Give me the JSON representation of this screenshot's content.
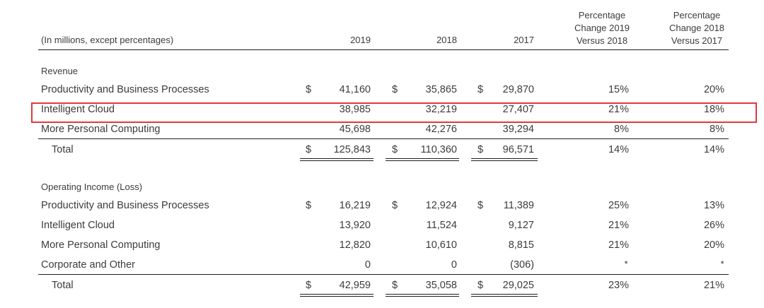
{
  "header": {
    "units_label": "(In millions, except percentages)",
    "col_2019": "2019",
    "col_2018": "2018",
    "col_2017": "2017",
    "col_pct_1_line1": "Percentage",
    "col_pct_1_line2": "Change 2019",
    "col_pct_1_line3": "Versus 2018",
    "col_pct_2_line1": "Percentage",
    "col_pct_2_line2": "Change 2018",
    "col_pct_2_line3": "Versus 2017"
  },
  "revenue": {
    "section_label": "Revenue",
    "rows": [
      {
        "label": "Productivity and Business Processes",
        "sign_2019": "$",
        "v2019": "41,160",
        "sign_2018": "$",
        "v2018": "35,865",
        "sign_2017": "$",
        "v2017": "29,870",
        "pct1": "15%",
        "pct2": "20%"
      },
      {
        "label": "Intelligent Cloud",
        "sign_2019": "",
        "v2019": "38,985",
        "sign_2018": "",
        "v2018": "32,219",
        "sign_2017": "",
        "v2017": "27,407",
        "pct1": "21%",
        "pct2": "18%"
      },
      {
        "label": "More Personal Computing",
        "sign_2019": "",
        "v2019": "45,698",
        "sign_2018": "",
        "v2018": "42,276",
        "sign_2017": "",
        "v2017": "39,294",
        "pct1": "8%",
        "pct2": "8%"
      }
    ],
    "total": {
      "label": "Total",
      "sign_2019": "$",
      "v2019": "125,843",
      "sign_2018": "$",
      "v2018": "110,360",
      "sign_2017": "$",
      "v2017": "96,571",
      "pct1": "14%",
      "pct2": "14%"
    }
  },
  "operating_income": {
    "section_label": "Operating Income (Loss)",
    "rows": [
      {
        "label": "Productivity and Business Processes",
        "sign_2019": "$",
        "v2019": "16,219",
        "sign_2018": "$",
        "v2018": "12,924",
        "sign_2017": "$",
        "v2017": "11,389",
        "pct1": "25%",
        "pct2": "13%"
      },
      {
        "label": "Intelligent Cloud",
        "sign_2019": "",
        "v2019": "13,920",
        "sign_2018": "",
        "v2018": "11,524",
        "sign_2017": "",
        "v2017": "9,127",
        "pct1": "21%",
        "pct2": "26%"
      },
      {
        "label": "More Personal Computing",
        "sign_2019": "",
        "v2019": "12,820",
        "sign_2018": "",
        "v2018": "10,610",
        "sign_2017": "",
        "v2017": "8,815",
        "pct1": "21%",
        "pct2": "20%"
      },
      {
        "label": "Corporate and Other",
        "sign_2019": "",
        "v2019": "0",
        "sign_2018": "",
        "v2018": "0",
        "sign_2017": "",
        "v2017": "(306)",
        "pct1": "*",
        "pct2": "*"
      }
    ],
    "total": {
      "label": "Total",
      "sign_2019": "$",
      "v2019": "42,959",
      "sign_2018": "$",
      "v2018": "35,058",
      "sign_2017": "$",
      "v2017": "29,025",
      "pct1": "23%",
      "pct2": "21%"
    }
  },
  "highlight": {
    "color": "#e0393e",
    "row": "Intelligent Cloud"
  }
}
